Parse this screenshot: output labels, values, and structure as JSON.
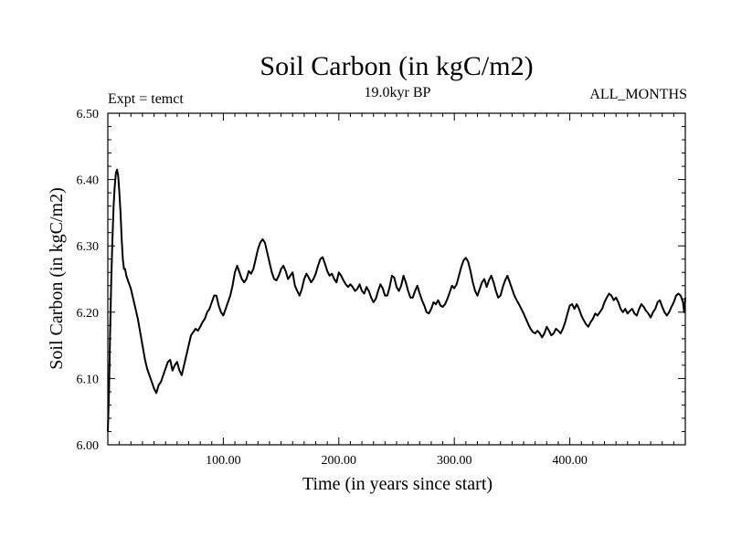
{
  "chart_data": {
    "type": "line",
    "title": "Soil Carbon (in kgC/m2)",
    "subtitle_left": "Expt = temct",
    "subtitle_center": "19.0kyr BP",
    "subtitle_right": "ALL_MONTHS",
    "xlabel": "Time (in years since start)",
    "ylabel": "Soil Carbon (in kgC/m2)",
    "xlim": [
      0,
      500
    ],
    "ylim": [
      6.0,
      6.5
    ],
    "x_ticks": [
      100,
      200,
      300,
      400
    ],
    "x_tick_labels": [
      "100.00",
      "200.00",
      "300.00",
      "400.00"
    ],
    "y_ticks": [
      6.0,
      6.1,
      6.2,
      6.3,
      6.4,
      6.5
    ],
    "y_tick_labels": [
      "6.00",
      "6.10",
      "6.20",
      "6.30",
      "6.40",
      "6.50"
    ],
    "series": [
      {
        "name": "Soil Carbon",
        "points": [
          [
            0,
            6.02
          ],
          [
            1,
            6.08
          ],
          [
            2,
            6.17
          ],
          [
            3,
            6.25
          ],
          [
            4,
            6.31
          ],
          [
            5,
            6.36
          ],
          [
            6,
            6.39
          ],
          [
            7,
            6.41
          ],
          [
            8,
            6.415
          ],
          [
            9,
            6.405
          ],
          [
            10,
            6.38
          ],
          [
            11,
            6.35
          ],
          [
            12,
            6.31
          ],
          [
            13,
            6.28
          ],
          [
            14,
            6.265
          ],
          [
            15,
            6.265
          ],
          [
            16,
            6.255
          ],
          [
            18,
            6.245
          ],
          [
            20,
            6.235
          ],
          [
            22,
            6.22
          ],
          [
            24,
            6.205
          ],
          [
            26,
            6.19
          ],
          [
            28,
            6.17
          ],
          [
            30,
            6.15
          ],
          [
            32,
            6.13
          ],
          [
            34,
            6.115
          ],
          [
            36,
            6.105
          ],
          [
            38,
            6.095
          ],
          [
            40,
            6.085
          ],
          [
            42,
            6.078
          ],
          [
            44,
            6.09
          ],
          [
            46,
            6.095
          ],
          [
            48,
            6.105
          ],
          [
            50,
            6.115
          ],
          [
            52,
            6.125
          ],
          [
            54,
            6.128
          ],
          [
            56,
            6.112
          ],
          [
            58,
            6.12
          ],
          [
            60,
            6.125
          ],
          [
            62,
            6.112
          ],
          [
            64,
            6.105
          ],
          [
            66,
            6.12
          ],
          [
            68,
            6.135
          ],
          [
            70,
            6.15
          ],
          [
            72,
            6.165
          ],
          [
            74,
            6.17
          ],
          [
            76,
            6.175
          ],
          [
            78,
            6.172
          ],
          [
            80,
            6.178
          ],
          [
            82,
            6.185
          ],
          [
            84,
            6.19
          ],
          [
            86,
            6.2
          ],
          [
            88,
            6.205
          ],
          [
            90,
            6.215
          ],
          [
            92,
            6.225
          ],
          [
            94,
            6.225
          ],
          [
            96,
            6.21
          ],
          [
            98,
            6.2
          ],
          [
            100,
            6.195
          ],
          [
            102,
            6.205
          ],
          [
            104,
            6.215
          ],
          [
            106,
            6.225
          ],
          [
            108,
            6.24
          ],
          [
            110,
            6.26
          ],
          [
            112,
            6.27
          ],
          [
            114,
            6.26
          ],
          [
            116,
            6.25
          ],
          [
            118,
            6.245
          ],
          [
            120,
            6.25
          ],
          [
            122,
            6.262
          ],
          [
            124,
            6.258
          ],
          [
            126,
            6.265
          ],
          [
            128,
            6.28
          ],
          [
            130,
            6.295
          ],
          [
            132,
            6.305
          ],
          [
            134,
            6.31
          ],
          [
            136,
            6.305
          ],
          [
            138,
            6.29
          ],
          [
            140,
            6.275
          ],
          [
            142,
            6.26
          ],
          [
            144,
            6.25
          ],
          [
            146,
            6.248
          ],
          [
            148,
            6.255
          ],
          [
            150,
            6.265
          ],
          [
            152,
            6.27
          ],
          [
            154,
            6.262
          ],
          [
            156,
            6.25
          ],
          [
            158,
            6.255
          ],
          [
            160,
            6.26
          ],
          [
            162,
            6.24
          ],
          [
            164,
            6.232
          ],
          [
            166,
            6.225
          ],
          [
            168,
            6.235
          ],
          [
            170,
            6.25
          ],
          [
            172,
            6.258
          ],
          [
            174,
            6.252
          ],
          [
            176,
            6.245
          ],
          [
            178,
            6.25
          ],
          [
            180,
            6.258
          ],
          [
            182,
            6.27
          ],
          [
            184,
            6.28
          ],
          [
            186,
            6.283
          ],
          [
            188,
            6.273
          ],
          [
            190,
            6.262
          ],
          [
            192,
            6.255
          ],
          [
            194,
            6.258
          ],
          [
            196,
            6.25
          ],
          [
            198,
            6.245
          ],
          [
            200,
            6.26
          ],
          [
            202,
            6.255
          ],
          [
            204,
            6.248
          ],
          [
            206,
            6.242
          ],
          [
            208,
            6.238
          ],
          [
            210,
            6.242
          ],
          [
            212,
            6.238
          ],
          [
            214,
            6.232
          ],
          [
            216,
            6.235
          ],
          [
            218,
            6.242
          ],
          [
            220,
            6.232
          ],
          [
            222,
            6.228
          ],
          [
            224,
            6.238
          ],
          [
            226,
            6.232
          ],
          [
            228,
            6.222
          ],
          [
            230,
            6.215
          ],
          [
            232,
            6.22
          ],
          [
            234,
            6.232
          ],
          [
            236,
            6.242
          ],
          [
            238,
            6.236
          ],
          [
            240,
            6.225
          ],
          [
            242,
            6.225
          ],
          [
            244,
            6.238
          ],
          [
            246,
            6.255
          ],
          [
            248,
            6.252
          ],
          [
            250,
            6.238
          ],
          [
            252,
            6.232
          ],
          [
            254,
            6.24
          ],
          [
            256,
            6.255
          ],
          [
            258,
            6.245
          ],
          [
            260,
            6.232
          ],
          [
            262,
            6.222
          ],
          [
            264,
            6.222
          ],
          [
            266,
            6.232
          ],
          [
            268,
            6.24
          ],
          [
            270,
            6.228
          ],
          [
            272,
            6.218
          ],
          [
            274,
            6.21
          ],
          [
            276,
            6.2
          ],
          [
            278,
            6.198
          ],
          [
            280,
            6.205
          ],
          [
            282,
            6.215
          ],
          [
            284,
            6.212
          ],
          [
            286,
            6.218
          ],
          [
            288,
            6.21
          ],
          [
            290,
            6.208
          ],
          [
            292,
            6.212
          ],
          [
            294,
            6.22
          ],
          [
            296,
            6.23
          ],
          [
            298,
            6.24
          ],
          [
            300,
            6.236
          ],
          [
            302,
            6.242
          ],
          [
            304,
            6.255
          ],
          [
            306,
            6.268
          ],
          [
            308,
            6.278
          ],
          [
            310,
            6.282
          ],
          [
            312,
            6.276
          ],
          [
            314,
            6.262
          ],
          [
            316,
            6.245
          ],
          [
            318,
            6.232
          ],
          [
            320,
            6.225
          ],
          [
            322,
            6.235
          ],
          [
            324,
            6.245
          ],
          [
            326,
            6.25
          ],
          [
            328,
            6.238
          ],
          [
            330,
            6.248
          ],
          [
            332,
            6.255
          ],
          [
            334,
            6.245
          ],
          [
            336,
            6.232
          ],
          [
            338,
            6.222
          ],
          [
            340,
            6.225
          ],
          [
            342,
            6.238
          ],
          [
            344,
            6.248
          ],
          [
            346,
            6.255
          ],
          [
            348,
            6.245
          ],
          [
            350,
            6.235
          ],
          [
            352,
            6.225
          ],
          [
            354,
            6.218
          ],
          [
            356,
            6.212
          ],
          [
            358,
            6.205
          ],
          [
            360,
            6.198
          ],
          [
            362,
            6.19
          ],
          [
            364,
            6.182
          ],
          [
            366,
            6.175
          ],
          [
            368,
            6.17
          ],
          [
            370,
            6.168
          ],
          [
            372,
            6.172
          ],
          [
            374,
            6.168
          ],
          [
            376,
            6.162
          ],
          [
            378,
            6.168
          ],
          [
            380,
            6.178
          ],
          [
            382,
            6.172
          ],
          [
            384,
            6.165
          ],
          [
            386,
            6.168
          ],
          [
            388,
            6.175
          ],
          [
            390,
            6.172
          ],
          [
            392,
            6.168
          ],
          [
            394,
            6.175
          ],
          [
            396,
            6.185
          ],
          [
            398,
            6.198
          ],
          [
            400,
            6.21
          ],
          [
            402,
            6.212
          ],
          [
            404,
            6.205
          ],
          [
            406,
            6.212
          ],
          [
            408,
            6.205
          ],
          [
            410,
            6.195
          ],
          [
            412,
            6.188
          ],
          [
            414,
            6.182
          ],
          [
            416,
            6.178
          ],
          [
            418,
            6.185
          ],
          [
            420,
            6.19
          ],
          [
            422,
            6.198
          ],
          [
            424,
            6.195
          ],
          [
            426,
            6.2
          ],
          [
            428,
            6.205
          ],
          [
            430,
            6.215
          ],
          [
            432,
            6.222
          ],
          [
            434,
            6.228
          ],
          [
            436,
            6.225
          ],
          [
            438,
            6.218
          ],
          [
            440,
            6.222
          ],
          [
            442,
            6.215
          ],
          [
            444,
            6.205
          ],
          [
            446,
            6.2
          ],
          [
            448,
            6.205
          ],
          [
            450,
            6.198
          ],
          [
            452,
            6.202
          ],
          [
            454,
            6.205
          ],
          [
            456,
            6.198
          ],
          [
            458,
            6.195
          ],
          [
            460,
            6.205
          ],
          [
            462,
            6.212
          ],
          [
            464,
            6.208
          ],
          [
            466,
            6.202
          ],
          [
            468,
            6.198
          ],
          [
            470,
            6.192
          ],
          [
            472,
            6.2
          ],
          [
            474,
            6.205
          ],
          [
            476,
            6.215
          ],
          [
            478,
            6.218
          ],
          [
            480,
            6.208
          ],
          [
            482,
            6.2
          ],
          [
            484,
            6.195
          ],
          [
            486,
            6.2
          ],
          [
            488,
            6.208
          ],
          [
            490,
            6.215
          ],
          [
            492,
            6.225
          ],
          [
            494,
            6.228
          ],
          [
            496,
            6.225
          ],
          [
            498,
            6.215
          ],
          [
            499,
            6.2
          ],
          [
            500,
            6.222
          ]
        ]
      }
    ]
  }
}
